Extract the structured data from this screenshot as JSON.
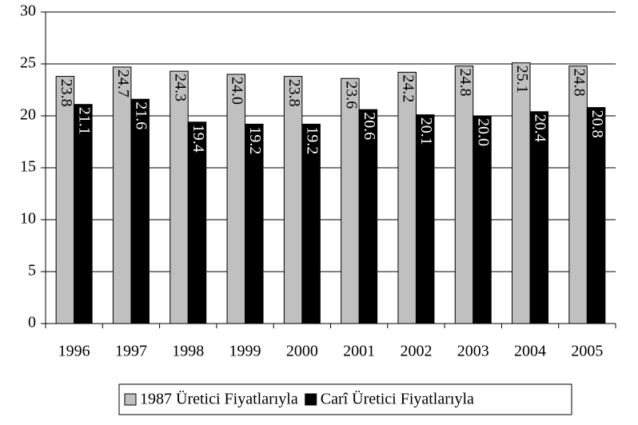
{
  "chart_data": {
    "type": "bar",
    "categories": [
      "1996",
      "1997",
      "1998",
      "1999",
      "2000",
      "2001",
      "2002",
      "2003",
      "2004",
      "2005"
    ],
    "series": [
      {
        "name": "1987 Üretici Fiyatlarıyla",
        "color": "#c0c0c0",
        "values": [
          23.8,
          24.7,
          24.3,
          24.0,
          23.8,
          23.6,
          24.2,
          24.8,
          25.1,
          24.8
        ],
        "value_labels": [
          "23.8",
          "24.7",
          "24.3",
          "24.0",
          "23.8",
          "23.6",
          "24.2",
          "24.8",
          "25.1",
          "24.8"
        ]
      },
      {
        "name": "Carî Üretici Fiyatlarıyla",
        "color": "#000000",
        "values": [
          21.1,
          21.6,
          19.4,
          19.2,
          19.2,
          20.6,
          20.1,
          20.0,
          20.4,
          20.8
        ],
        "value_labels": [
          "21.1",
          "21.6",
          "19.4",
          "19.2",
          "19.2",
          "20.6",
          "20.1",
          "20.0",
          "20.4",
          "20.8"
        ]
      }
    ],
    "ylim": [
      0,
      30
    ],
    "yticks": [
      0,
      5,
      10,
      15,
      20,
      25,
      30
    ],
    "grid": true,
    "legend": "bottom"
  }
}
